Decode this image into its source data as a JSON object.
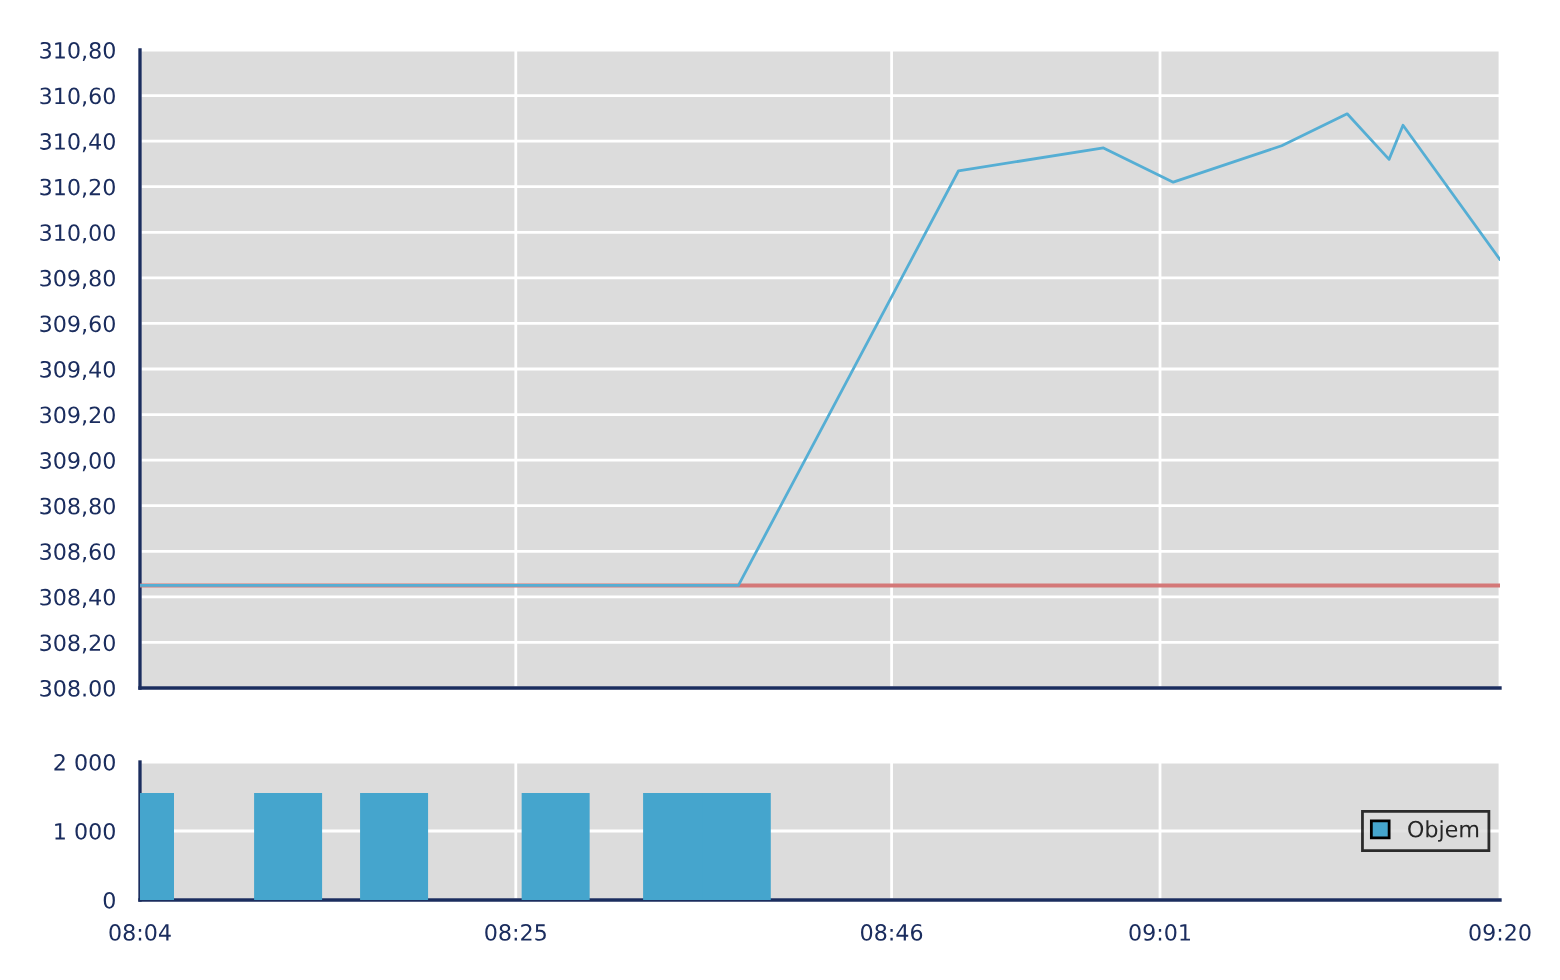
{
  "chart_data": [
    {
      "type": "line",
      "x": [
        8.06667,
        8.624,
        8.829,
        8.964,
        9.029,
        9.13,
        9.191,
        9.23,
        9.243,
        9.33333
      ],
      "series": [
        {
          "color": "#55aed4",
          "values": [
            308.45,
            308.45,
            310.27,
            310.37,
            310.22,
            310.38,
            310.52,
            310.32,
            310.47,
            309.88
          ]
        }
      ],
      "xlim": [
        8.06667,
        9.33333
      ],
      "xticks": [
        {
          "value": 8.06667,
          "label": null
        },
        {
          "value": 8.41667,
          "label": null
        },
        {
          "value": 8.76667,
          "label": null
        },
        {
          "value": 9.01667,
          "label": null
        },
        {
          "value": 9.33333,
          "label": null
        }
      ],
      "ylim": [
        308.0,
        310.8
      ],
      "yticks": [
        {
          "value": 308.0,
          "label": "308.00"
        },
        {
          "value": 308.2,
          "label": "308,20"
        },
        {
          "value": 308.4,
          "label": "308,40"
        },
        {
          "value": 308.6,
          "label": "308,60"
        },
        {
          "value": 308.8,
          "label": "308,80"
        },
        {
          "value": 309.0,
          "label": "309,00"
        },
        {
          "value": 309.2,
          "label": "309,20"
        },
        {
          "value": 309.4,
          "label": "309,40"
        },
        {
          "value": 309.6,
          "label": "309,60"
        },
        {
          "value": 309.8,
          "label": "309,80"
        },
        {
          "value": 310.0,
          "label": "310,00"
        },
        {
          "value": 310.2,
          "label": "310,20"
        },
        {
          "value": 310.4,
          "label": "310,40"
        },
        {
          "value": 310.6,
          "label": "310,60"
        },
        {
          "value": 310.8,
          "label": "310,80"
        }
      ],
      "ref_lines": [
        {
          "axis": "y",
          "value": 308.45,
          "color": "#d47878"
        }
      ],
      "grid": true,
      "tick_labels": "y",
      "legend": false
    },
    {
      "type": "bar",
      "x": [
        8.06667,
        8.2046,
        8.3033,
        8.4538,
        8.5669,
        8.6225
      ],
      "series": [
        {
          "name": "Objem",
          "color": "#45a5cd",
          "values": [
            1550,
            1550,
            1550,
            1550,
            1550,
            1550
          ]
        }
      ],
      "xlim": [
        8.06667,
        9.33333
      ],
      "xticks": [
        {
          "value": 8.06667,
          "label": "08:04"
        },
        {
          "value": 8.41667,
          "label": "08:25"
        },
        {
          "value": 8.76667,
          "label": "08:46"
        },
        {
          "value": 9.01667,
          "label": "09:01"
        },
        {
          "value": 9.33333,
          "label": "09:20"
        }
      ],
      "ylim": [
        0,
        2000
      ],
      "yticks": [
        0,
        {
          "value": 1000,
          "label": "1 000"
        },
        {
          "value": 2000,
          "label": "2 000"
        }
      ],
      "grid": true,
      "legend": "right"
    }
  ]
}
